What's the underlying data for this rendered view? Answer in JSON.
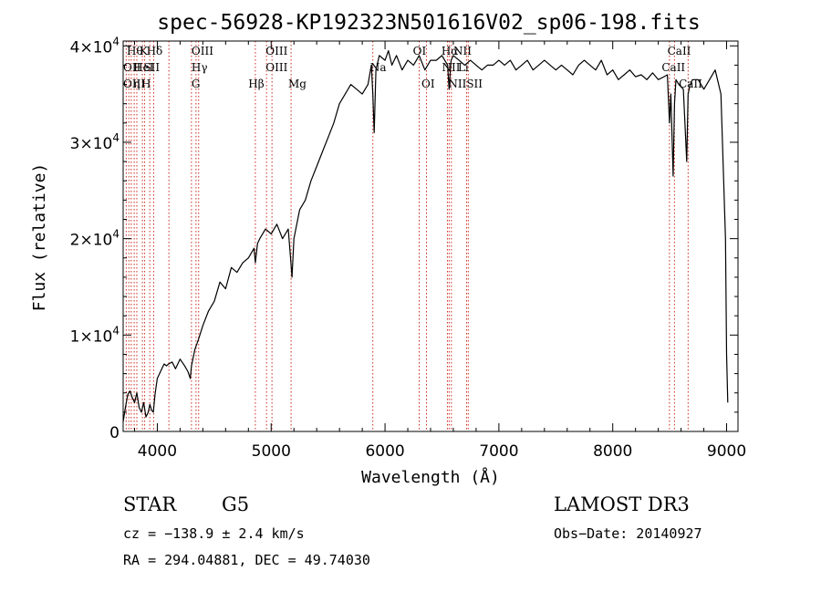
{
  "chart_data": {
    "type": "line",
    "title": "spec-56928-KP192323N501616V02_sp06-198.fits",
    "xlabel": "Wavelength (Å)",
    "ylabel": "Flux (relative)",
    "xlim": [
      3700,
      9100
    ],
    "ylim": [
      0,
      40500
    ],
    "x_ticks": [
      4000,
      5000,
      6000,
      7000,
      8000,
      9000
    ],
    "x_tick_labels": [
      "4000",
      "5000",
      "6000",
      "7000",
      "8000",
      "9000"
    ],
    "y_ticks": [
      0,
      10000,
      20000,
      30000,
      40000
    ],
    "y_tick_labels": [
      {
        "mantissa": "0",
        "exp": ""
      },
      {
        "mantissa": "1×10",
        "exp": "4"
      },
      {
        "mantissa": "2×10",
        "exp": "4"
      },
      {
        "mantissa": "3×10",
        "exp": "4"
      },
      {
        "mantissa": "4×10",
        "exp": "4"
      }
    ],
    "series": [
      {
        "name": "spectrum",
        "color": "#000000",
        "x": [
          3700,
          3720,
          3740,
          3760,
          3780,
          3800,
          3820,
          3840,
          3860,
          3880,
          3900,
          3920,
          3935,
          3950,
          3965,
          3980,
          4000,
          4020,
          4040,
          4060,
          4080,
          4100,
          4130,
          4160,
          4200,
          4240,
          4270,
          4290,
          4300,
          4330,
          4360,
          4400,
          4450,
          4500,
          4550,
          4600,
          4650,
          4700,
          4750,
          4800,
          4850,
          4861,
          4880,
          4900,
          4950,
          5000,
          5050,
          5100,
          5150,
          5170,
          5183,
          5200,
          5250,
          5300,
          5350,
          5400,
          5450,
          5500,
          5550,
          5600,
          5650,
          5700,
          5750,
          5800,
          5850,
          5880,
          5893,
          5905,
          5920,
          5950,
          6000,
          6030,
          6060,
          6100,
          6150,
          6200,
          6250,
          6300,
          6350,
          6400,
          6450,
          6500,
          6550,
          6563,
          6580,
          6600,
          6650,
          6700,
          6750,
          6800,
          6850,
          6900,
          6950,
          7000,
          7050,
          7100,
          7150,
          7200,
          7250,
          7300,
          7350,
          7400,
          7450,
          7500,
          7550,
          7600,
          7650,
          7700,
          7750,
          7800,
          7850,
          7900,
          7950,
          8000,
          8050,
          8100,
          8150,
          8200,
          8250,
          8300,
          8350,
          8400,
          8450,
          8480,
          8498,
          8510,
          8530,
          8542,
          8555,
          8580,
          8620,
          8650,
          8662,
          8680,
          8700,
          8750,
          8800,
          8850,
          8900,
          8950,
          8990,
          9000,
          9010
        ],
        "y": [
          1000,
          2500,
          3800,
          4200,
          3500,
          3000,
          4000,
          2500,
          2000,
          3000,
          1500,
          2000,
          2800,
          2200,
          2000,
          3800,
          5500,
          6000,
          6500,
          7000,
          6800,
          7000,
          7200,
          6500,
          7500,
          6800,
          6200,
          5500,
          6800,
          8500,
          9500,
          11000,
          12500,
          13500,
          15500,
          14800,
          17000,
          16500,
          17500,
          18000,
          19000,
          17500,
          19500,
          20000,
          21000,
          20500,
          21500,
          20000,
          21000,
          18000,
          16000,
          20000,
          23000,
          24000,
          26000,
          27500,
          29000,
          30500,
          32000,
          34000,
          35000,
          36000,
          35500,
          35000,
          36000,
          38000,
          35000,
          31000,
          37500,
          39000,
          38500,
          39500,
          38000,
          39000,
          37500,
          38500,
          38000,
          39000,
          37500,
          38500,
          38500,
          39000,
          38000,
          35500,
          38500,
          39000,
          38500,
          38000,
          38500,
          38000,
          37500,
          38000,
          38000,
          38500,
          38000,
          38500,
          37500,
          38000,
          38500,
          37500,
          38000,
          38500,
          38000,
          37500,
          38000,
          37500,
          37000,
          38000,
          38500,
          38000,
          37500,
          38500,
          37000,
          37500,
          36500,
          37000,
          37500,
          36800,
          37000,
          36500,
          37200,
          36500,
          36800,
          37000,
          32000,
          35000,
          26500,
          34000,
          36500,
          36000,
          35500,
          28000,
          35000,
          36000,
          36500,
          36500,
          35500,
          36500,
          37500,
          35000,
          20000,
          8000,
          3000
        ]
      }
    ],
    "spectral_lines": [
      {
        "wave": 3727,
        "labels": [
          "OII"
        ],
        "row": 2
      },
      {
        "wave": 3750,
        "labels": [
          "Hθ"
        ],
        "row": 0
      },
      {
        "wave": 3771,
        "labels": [
          "OIII"
        ],
        "row": 1
      },
      {
        "wave": 3797,
        "labels": [
          "Hη"
        ],
        "row": 2
      },
      {
        "wave": 3820,
        "labels": [
          "HeI"
        ],
        "row": 1
      },
      {
        "wave": 3869,
        "labels": [
          "K"
        ],
        "row": 0
      },
      {
        "wave": 3889,
        "labels": [
          "SII"
        ],
        "row": 1
      },
      {
        "wave": 3934,
        "labels": [
          "H"
        ],
        "row": 2
      },
      {
        "wave": 3968,
        "labels": [
          "Hδ"
        ],
        "row": 0
      },
      {
        "wave": 4102,
        "labels": [],
        "row": 0
      },
      {
        "wave": 4300,
        "labels": [
          "OIII"
        ],
        "row": 0
      },
      {
        "wave": 4340,
        "labels": [
          "Hγ"
        ],
        "row": 1
      },
      {
        "wave": 4363,
        "labels": [
          "G"
        ],
        "row": 2
      },
      {
        "wave": 4861,
        "labels": [
          "Hβ"
        ],
        "row": 2
      },
      {
        "wave": 4959,
        "labels": [
          "OIII"
        ],
        "row": 1
      },
      {
        "wave": 5007,
        "labels": [
          "OIII"
        ],
        "row": 0
      },
      {
        "wave": 5175,
        "labels": [
          "Mg"
        ],
        "row": 2
      },
      {
        "wave": 5893,
        "labels": [
          "Na"
        ],
        "row": 1
      },
      {
        "wave": 6300,
        "labels": [
          "OI"
        ],
        "row": 0
      },
      {
        "wave": 6364,
        "labels": [
          "OI"
        ],
        "row": 2
      },
      {
        "wave": 6548,
        "labels": [
          "NII"
        ],
        "row": 0
      },
      {
        "wave": 6563,
        "labels": [
          "Hα",
          "NII"
        ],
        "row": 1
      },
      {
        "wave": 6583,
        "labels": [
          "NII"
        ],
        "row": 2
      },
      {
        "wave": 6716,
        "labels": [
          "SII"
        ],
        "row": 0
      },
      {
        "wave": 6731,
        "labels": [
          "Li",
          "SII"
        ],
        "row": 1
      },
      {
        "wave": 8498,
        "labels": [
          "CaII"
        ],
        "row": 0
      },
      {
        "wave": 8542,
        "labels": [
          "CaII"
        ],
        "row": 1
      },
      {
        "wave": 8662,
        "labels": [
          "CaII"
        ],
        "row": 2
      }
    ],
    "line_label_rows": [
      {
        "wave": 3732,
        "row": 0,
        "text": "Hθ"
      },
      {
        "wave": 3843,
        "row": 0,
        "text": "K"
      },
      {
        "wave": 3905,
        "row": 0,
        "text": "Hδ"
      },
      {
        "wave": 4300,
        "row": 0,
        "text": "OIII"
      },
      {
        "wave": 4952,
        "row": 0,
        "text": "OIII"
      },
      {
        "wave": 6245,
        "row": 0,
        "text": "OI"
      },
      {
        "wave": 6495,
        "row": 0,
        "text": "Hα"
      },
      {
        "wave": 6600,
        "row": 0,
        "text": "NII"
      },
      {
        "wave": 8480,
        "row": 0,
        "text": "CaII"
      },
      {
        "wave": 3700,
        "row": 1,
        "text": "OII"
      },
      {
        "wave": 3790,
        "row": 1,
        "text": "HeI"
      },
      {
        "wave": 3880,
        "row": 1,
        "text": "SII"
      },
      {
        "wave": 4300,
        "row": 1,
        "text": "Hγ"
      },
      {
        "wave": 4952,
        "row": 1,
        "text": "OIII"
      },
      {
        "wave": 5870,
        "row": 1,
        "text": "Na"
      },
      {
        "wave": 6500,
        "row": 1,
        "text": "NII"
      },
      {
        "wave": 6640,
        "row": 1,
        "text": "Li"
      },
      {
        "wave": 8430,
        "row": 1,
        "text": "CaII"
      },
      {
        "wave": 3700,
        "row": 2,
        "text": "OIII"
      },
      {
        "wave": 3790,
        "row": 2,
        "text": "η"
      },
      {
        "wave": 3860,
        "row": 2,
        "text": "H"
      },
      {
        "wave": 4300,
        "row": 2,
        "text": "G"
      },
      {
        "wave": 4800,
        "row": 2,
        "text": "Hβ"
      },
      {
        "wave": 5150,
        "row": 2,
        "text": "Mg"
      },
      {
        "wave": 6320,
        "row": 2,
        "text": "OI"
      },
      {
        "wave": 6555,
        "row": 2,
        "text": "NIISII"
      },
      {
        "wave": 8580,
        "row": 2,
        "text": "CaII"
      }
    ]
  },
  "footer": {
    "object_class": "STAR",
    "subclass": "G5",
    "survey": "LAMOST DR3",
    "cz": "cz = −138.9 ± 2.4 km/s",
    "obs_date": "Obs−Date: 20140927",
    "radec": "RA = 294.04881, DEC =  49.74030"
  }
}
